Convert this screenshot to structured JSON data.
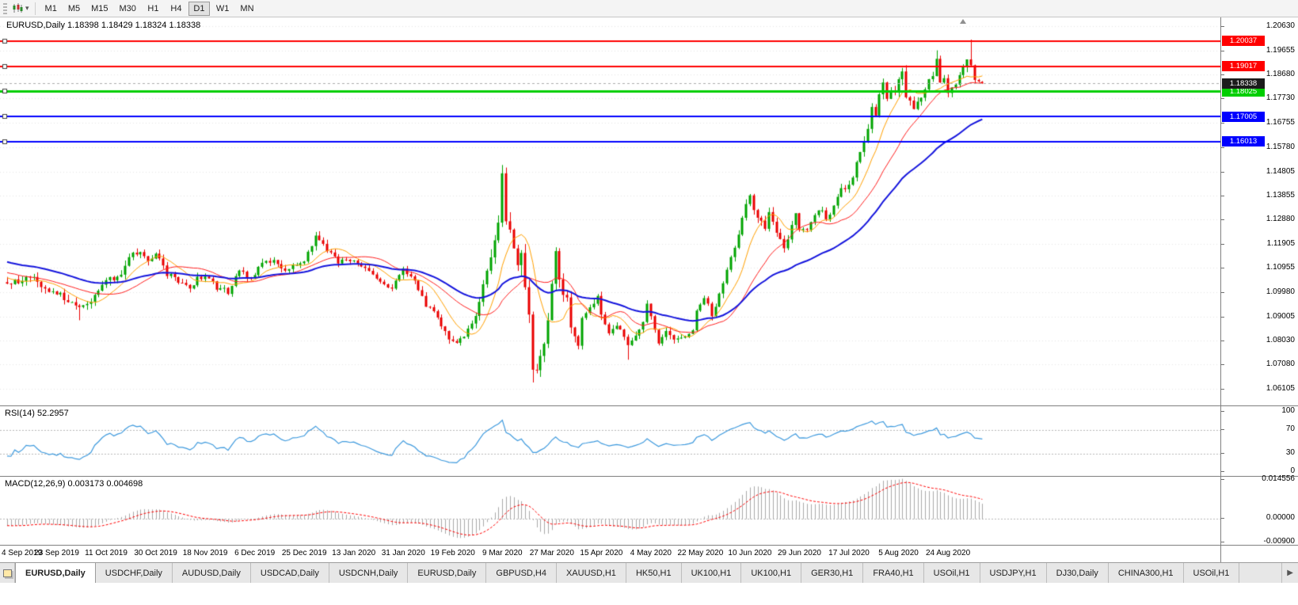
{
  "toolbar": {
    "timeframes": [
      {
        "label": "M1",
        "active": false
      },
      {
        "label": "M5",
        "active": false
      },
      {
        "label": "M15",
        "active": false
      },
      {
        "label": "M30",
        "active": false
      },
      {
        "label": "H1",
        "active": false
      },
      {
        "label": "H4",
        "active": false
      },
      {
        "label": "D1",
        "active": true
      },
      {
        "label": "W1",
        "active": false
      },
      {
        "label": "MN",
        "active": false
      }
    ]
  },
  "chart": {
    "title": "EURUSD,Daily 1.18398 1.18429 1.18324 1.18338",
    "symbol": "EURUSD",
    "timeframe": "Daily",
    "current_price": "1.18338",
    "y_axis_ticks": [
      "1.20630",
      "1.19655",
      "1.18680",
      "1.17730",
      "1.16755",
      "1.15780",
      "1.14805",
      "1.13855",
      "1.12880",
      "1.11905",
      "1.10955",
      "1.09980",
      "1.09005",
      "1.08030",
      "1.07080",
      "1.06105"
    ]
  },
  "rsi_panel": {
    "label": "RSI(14) 52.2957",
    "ticks": [
      {
        "text": "100",
        "value": 100
      },
      {
        "text": "70",
        "value": 70
      },
      {
        "text": "30",
        "value": 30
      },
      {
        "text": "0",
        "value": 0
      }
    ]
  },
  "macd_panel": {
    "label": "MACD(12,26,9) 0.003173 0.004698",
    "ticks": [
      {
        "text": "0.014556",
        "value": 0.014556
      },
      {
        "text": "0.00000",
        "value": 0
      },
      {
        "text": "-0.00900",
        "value": -0.009
      }
    ]
  },
  "date_axis": [
    "4 Sep 2019",
    "23 Sep 2019",
    "11 Oct 2019",
    "30 Oct 2019",
    "18 Nov 2019",
    "6 Dec 2019",
    "25 Dec 2019",
    "13 Jan 2020",
    "31 Jan 2020",
    "19 Feb 2020",
    "9 Mar 2020",
    "27 Mar 2020",
    "15 Apr 2020",
    "4 May 2020",
    "22 May 2020",
    "10 Jun 2020",
    "29 Jun 2020",
    "17 Jul 2020",
    "5 Aug 2020",
    "24 Aug 2020"
  ],
  "tabs": {
    "items": [
      {
        "label": "EURUSD,Daily",
        "active": true
      },
      {
        "label": "USDCHF,Daily",
        "active": false
      },
      {
        "label": "AUDUSD,Daily",
        "active": false
      },
      {
        "label": "USDCAD,Daily",
        "active": false
      },
      {
        "label": "USDCNH,Daily",
        "active": false
      },
      {
        "label": "EURUSD,Daily",
        "active": false
      },
      {
        "label": "GBPUSD,H4",
        "active": false
      },
      {
        "label": "XAUUSD,H1",
        "active": false
      },
      {
        "label": "HK50,H1",
        "active": false
      },
      {
        "label": "UK100,H1",
        "active": false
      },
      {
        "label": "UK100,H1",
        "active": false
      },
      {
        "label": "GER30,H1",
        "active": false
      },
      {
        "label": "FRA40,H1",
        "active": false
      },
      {
        "label": "USOil,H1",
        "active": false
      },
      {
        "label": "USDJPY,H1",
        "active": false
      },
      {
        "label": "DJ30,Daily",
        "active": false
      },
      {
        "label": "CHINA300,H1",
        "active": false
      },
      {
        "label": "USOil,H1",
        "active": false
      }
    ],
    "scroll_right": "▶"
  },
  "chart_data": {
    "type": "candlestick",
    "symbol": "EURUSD",
    "period": "Daily",
    "ohlc_current": {
      "open": 1.18398,
      "high": 1.18429,
      "low": 1.18324,
      "close": 1.18338
    },
    "y_axis": {
      "max": 1.2063,
      "min": 1.06105
    },
    "bars_total": 257,
    "x_label_first_bar": 0,
    "x_label_step_bars": 13,
    "colors": {
      "up": "#00A400",
      "down": "#EA0000",
      "grid": "#E7E7E7",
      "bid_line": "#ABABAB",
      "bid_box": "#1B1B1B",
      "macd_hist": "#A9A9A9",
      "macd_signal": "#FF0000",
      "rsi": "#3E9ADE"
    },
    "levels": [
      {
        "price": 1.20037,
        "label": "1.20037",
        "color": "#FF0000",
        "width": 2
      },
      {
        "price": 1.19017,
        "label": "1.19017",
        "color": "#FF0000",
        "width": 2
      },
      {
        "price": 1.18025,
        "label": "1.18025",
        "color": "#00CE00",
        "width": 3
      },
      {
        "price": 1.17005,
        "label": "1.17005",
        "color": "#0000FF",
        "width": 2
      },
      {
        "price": 1.16013,
        "label": "1.16013",
        "color": "#0000FF",
        "width": 2
      }
    ],
    "moving_averages": [
      {
        "period": 9,
        "type": "sma",
        "color": "#FFA000",
        "width": 1
      },
      {
        "period": 20,
        "type": "sma",
        "color": "#FF2020",
        "width": 1
      },
      {
        "period": 45,
        "type": "ema",
        "color": "#1515DD",
        "width": 2
      }
    ],
    "indicators": {
      "rsi": {
        "period": 14,
        "current": 52.2957,
        "guides": [
          70,
          30
        ],
        "scale": [
          0,
          100
        ]
      },
      "macd": {
        "fast": 12,
        "slow": 26,
        "signal": 9,
        "values": [
          0.003173,
          0.004698
        ],
        "scale_max": 0.014556,
        "scale_min": -0.009
      }
    },
    "anchors": [
      [
        0,
        1.1035,
        0.005
      ],
      [
        4,
        1.1042,
        0.005
      ],
      [
        6,
        1.1068,
        0.005
      ],
      [
        10,
        1.1,
        0.005
      ],
      [
        13,
        1.0998,
        0.005
      ],
      [
        16,
        1.096,
        0.005
      ],
      [
        19,
        1.093,
        0.005
      ],
      [
        22,
        1.0962,
        0.005
      ],
      [
        26,
        1.1035,
        0.005
      ],
      [
        30,
        1.108,
        0.005
      ],
      [
        33,
        1.1148,
        0.005
      ],
      [
        35,
        1.1165,
        0.004
      ],
      [
        37,
        1.1112,
        0.004
      ],
      [
        39,
        1.115,
        0.004
      ],
      [
        42,
        1.1072,
        0.004
      ],
      [
        46,
        1.1035,
        0.004
      ],
      [
        48,
        1.1018,
        0.004
      ],
      [
        50,
        1.105,
        0.004
      ],
      [
        52,
        1.1068,
        0.004
      ],
      [
        55,
        1.1015,
        0.004
      ],
      [
        58,
        1.1,
        0.004
      ],
      [
        61,
        1.108,
        0.004
      ],
      [
        64,
        1.1055,
        0.004
      ],
      [
        68,
        1.113,
        0.004
      ],
      [
        71,
        1.1115,
        0.004
      ],
      [
        73,
        1.1075,
        0.004
      ],
      [
        76,
        1.111,
        0.003
      ],
      [
        78,
        1.112,
        0.003
      ],
      [
        81,
        1.1225,
        0.004
      ],
      [
        84,
        1.116,
        0.004
      ],
      [
        87,
        1.112,
        0.004
      ],
      [
        91,
        1.1132,
        0.003
      ],
      [
        94,
        1.1095,
        0.003
      ],
      [
        98,
        1.1035,
        0.003
      ],
      [
        101,
        1.101,
        0.003
      ],
      [
        104,
        1.1094,
        0.004
      ],
      [
        107,
        1.104,
        0.004
      ],
      [
        110,
        1.0946,
        0.004
      ],
      [
        113,
        1.0895,
        0.004
      ],
      [
        115,
        1.084,
        0.004
      ],
      [
        117,
        1.0792,
        0.004
      ],
      [
        119,
        1.0805,
        0.004
      ],
      [
        121,
        1.0852,
        0.004
      ],
      [
        123,
        1.089,
        0.005
      ],
      [
        125,
        1.1026,
        0.007
      ],
      [
        127,
        1.1135,
        0.008
      ],
      [
        129,
        1.1284,
        0.009
      ],
      [
        130,
        1.145,
        0.01
      ],
      [
        131,
        1.128,
        0.01
      ],
      [
        133,
        1.1184,
        0.01
      ],
      [
        134,
        1.1107,
        0.01
      ],
      [
        135,
        1.118,
        0.011
      ],
      [
        136,
        1.0995,
        0.011
      ],
      [
        137,
        1.0917,
        0.011
      ],
      [
        138,
        1.0692,
        0.011
      ],
      [
        139,
        1.0698,
        0.01
      ],
      [
        140,
        1.0725,
        0.009
      ],
      [
        141,
        1.0789,
        0.009
      ],
      [
        142,
        1.0883,
        0.009
      ],
      [
        143,
        1.1029,
        0.009
      ],
      [
        144,
        1.1141,
        0.009
      ],
      [
        145,
        1.1047,
        0.008
      ],
      [
        147,
        1.0962,
        0.007
      ],
      [
        148,
        1.0855,
        0.007
      ],
      [
        150,
        1.0795,
        0.006
      ],
      [
        151,
        1.089,
        0.006
      ],
      [
        153,
        1.093,
        0.005
      ],
      [
        155,
        1.098,
        0.005
      ],
      [
        156,
        1.0914,
        0.005
      ],
      [
        158,
        1.0842,
        0.005
      ],
      [
        160,
        1.0862,
        0.004
      ],
      [
        162,
        1.0822,
        0.004
      ],
      [
        163,
        1.0778,
        0.005
      ],
      [
        165,
        1.0832,
        0.004
      ],
      [
        167,
        1.0875,
        0.004
      ],
      [
        168,
        1.0955,
        0.005
      ],
      [
        169,
        1.0906,
        0.005
      ],
      [
        171,
        1.0795,
        0.004
      ],
      [
        173,
        1.0833,
        0.004
      ],
      [
        175,
        1.0807,
        0.004
      ],
      [
        178,
        1.0818,
        0.003
      ],
      [
        180,
        1.085,
        0.003
      ],
      [
        181,
        1.0917,
        0.004
      ],
      [
        183,
        1.0977,
        0.004
      ],
      [
        184,
        1.0949,
        0.004
      ],
      [
        185,
        1.09,
        0.004
      ],
      [
        187,
        1.0983,
        0.004
      ],
      [
        189,
        1.1076,
        0.005
      ],
      [
        190,
        1.1134,
        0.005
      ],
      [
        192,
        1.1233,
        0.005
      ],
      [
        194,
        1.1337,
        0.006
      ],
      [
        195,
        1.1373,
        0.006
      ],
      [
        197,
        1.1298,
        0.005
      ],
      [
        199,
        1.1254,
        0.005
      ],
      [
        200,
        1.1323,
        0.005
      ],
      [
        202,
        1.1244,
        0.004
      ],
      [
        204,
        1.1177,
        0.004
      ],
      [
        206,
        1.126,
        0.004
      ],
      [
        207,
        1.1308,
        0.004
      ],
      [
        208,
        1.1243,
        0.003
      ],
      [
        210,
        1.1251,
        0.003
      ],
      [
        212,
        1.1308,
        0.004
      ],
      [
        214,
        1.1329,
        0.004
      ],
      [
        215,
        1.1284,
        0.003
      ],
      [
        217,
        1.1344,
        0.003
      ],
      [
        219,
        1.1411,
        0.004
      ],
      [
        221,
        1.1427,
        0.004
      ],
      [
        222,
        1.1447,
        0.004
      ],
      [
        223,
        1.1526,
        0.005
      ],
      [
        225,
        1.1596,
        0.005
      ],
      [
        226,
        1.1656,
        0.005
      ],
      [
        227,
        1.1752,
        0.006
      ],
      [
        228,
        1.1716,
        0.006
      ],
      [
        229,
        1.1791,
        0.006
      ],
      [
        230,
        1.1847,
        0.006
      ],
      [
        231,
        1.1778,
        0.006
      ],
      [
        233,
        1.1803,
        0.005
      ],
      [
        234,
        1.1862,
        0.005
      ],
      [
        235,
        1.1878,
        0.006
      ],
      [
        236,
        1.1785,
        0.006
      ],
      [
        238,
        1.174,
        0.005
      ],
      [
        240,
        1.1784,
        0.004
      ],
      [
        242,
        1.1842,
        0.004
      ],
      [
        243,
        1.187,
        0.004
      ],
      [
        244,
        1.1932,
        0.005
      ],
      [
        245,
        1.1839,
        0.005
      ],
      [
        246,
        1.1858,
        0.004
      ],
      [
        247,
        1.1789,
        0.004
      ],
      [
        249,
        1.1834,
        0.004
      ],
      [
        251,
        1.1904,
        0.004
      ],
      [
        252,
        1.1936,
        0.005
      ],
      [
        253,
        1.1911,
        0.006
      ],
      [
        254,
        1.1854,
        0.005
      ],
      [
        255,
        1.1845,
        0.004
      ],
      [
        256,
        1.18338,
        0.003
      ]
    ],
    "overrides": [
      {
        "bar": 19,
        "low": 1.0885
      },
      {
        "bar": 130,
        "high": 1.1495
      },
      {
        "bar": 138,
        "low": 1.0636
      },
      {
        "bar": 163,
        "low": 1.0727
      },
      {
        "bar": 244,
        "high": 1.1966
      },
      {
        "bar": 253,
        "high": 1.2009
      }
    ]
  }
}
